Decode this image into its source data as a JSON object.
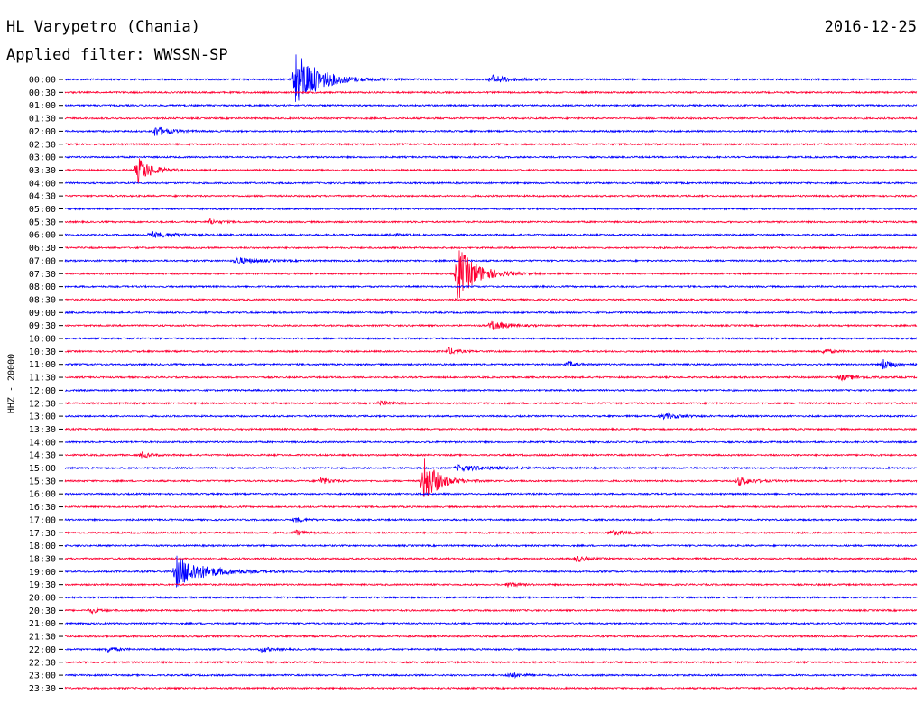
{
  "header": {
    "station": "HL Varypetro (Chania)",
    "date": "2016-12-25",
    "filter": "Applied filter: WWSSN-SP"
  },
  "axis": {
    "ylabel": "HHZ - 20000"
  },
  "chart_data": {
    "type": "line",
    "title": "HL Varypetro (Chania)",
    "xlabel": "",
    "ylabel": "HHZ - 20000",
    "grid": false,
    "legend": "none",
    "colors": {
      "even": "#0000ff",
      "odd": "#ff0033"
    },
    "series": [
      {
        "label": "00:00",
        "events": [
          {
            "x": 0.27,
            "amp": 33,
            "dur": 0.025
          },
          {
            "x": 0.5,
            "amp": 5,
            "dur": 0.02
          }
        ]
      },
      {
        "label": "00:30",
        "events": []
      },
      {
        "label": "01:00",
        "events": []
      },
      {
        "label": "01:30",
        "events": []
      },
      {
        "label": "02:00",
        "events": [
          {
            "x": 0.105,
            "amp": 6,
            "dur": 0.015
          }
        ]
      },
      {
        "label": "02:30",
        "events": []
      },
      {
        "label": "03:00",
        "events": []
      },
      {
        "label": "03:30",
        "events": [
          {
            "x": 0.085,
            "amp": 15,
            "dur": 0.015
          }
        ]
      },
      {
        "label": "04:00",
        "events": []
      },
      {
        "label": "04:30",
        "events": []
      },
      {
        "label": "05:00",
        "events": []
      },
      {
        "label": "05:30",
        "events": [
          {
            "x": 0.17,
            "amp": 3,
            "dur": 0.01
          }
        ]
      },
      {
        "label": "06:00",
        "events": [
          {
            "x": 0.1,
            "amp": 3,
            "dur": 0.03
          },
          {
            "x": 0.38,
            "amp": 2,
            "dur": 0.01
          }
        ]
      },
      {
        "label": "06:30",
        "events": []
      },
      {
        "label": "07:00",
        "events": [
          {
            "x": 0.2,
            "amp": 4,
            "dur": 0.02
          }
        ]
      },
      {
        "label": "07:30",
        "events": [
          {
            "x": 0.46,
            "amp": 32,
            "dur": 0.02
          }
        ]
      },
      {
        "label": "08:00",
        "events": []
      },
      {
        "label": "08:30",
        "events": []
      },
      {
        "label": "09:00",
        "events": []
      },
      {
        "label": "09:30",
        "events": [
          {
            "x": 0.5,
            "amp": 6,
            "dur": 0.015
          }
        ]
      },
      {
        "label": "10:00",
        "events": []
      },
      {
        "label": "10:30",
        "events": [
          {
            "x": 0.45,
            "amp": 4,
            "dur": 0.01
          },
          {
            "x": 0.89,
            "amp": 3,
            "dur": 0.01
          }
        ]
      },
      {
        "label": "11:00",
        "events": [
          {
            "x": 0.59,
            "amp": 3,
            "dur": 0.01
          },
          {
            "x": 0.96,
            "amp": 6,
            "dur": 0.015
          }
        ]
      },
      {
        "label": "11:30",
        "events": [
          {
            "x": 0.91,
            "amp": 3,
            "dur": 0.02
          }
        ]
      },
      {
        "label": "12:00",
        "events": []
      },
      {
        "label": "12:30",
        "events": [
          {
            "x": 0.37,
            "amp": 3,
            "dur": 0.01
          }
        ]
      },
      {
        "label": "13:00",
        "events": [
          {
            "x": 0.7,
            "amp": 3,
            "dur": 0.02
          }
        ]
      },
      {
        "label": "13:30",
        "events": []
      },
      {
        "label": "14:00",
        "events": []
      },
      {
        "label": "14:30",
        "events": [
          {
            "x": 0.09,
            "amp": 3,
            "dur": 0.01
          }
        ]
      },
      {
        "label": "15:00",
        "events": [
          {
            "x": 0.46,
            "amp": 3,
            "dur": 0.04
          }
        ]
      },
      {
        "label": "15:30",
        "events": [
          {
            "x": 0.3,
            "amp": 4,
            "dur": 0.01
          },
          {
            "x": 0.42,
            "amp": 30,
            "dur": 0.015
          },
          {
            "x": 0.79,
            "amp": 5,
            "dur": 0.015
          }
        ]
      },
      {
        "label": "16:00",
        "events": []
      },
      {
        "label": "16:30",
        "events": []
      },
      {
        "label": "17:00",
        "events": [
          {
            "x": 0.27,
            "amp": 3,
            "dur": 0.01
          }
        ]
      },
      {
        "label": "17:30",
        "events": [
          {
            "x": 0.27,
            "amp": 3,
            "dur": 0.01
          },
          {
            "x": 0.64,
            "amp": 3,
            "dur": 0.02
          }
        ]
      },
      {
        "label": "18:00",
        "events": []
      },
      {
        "label": "18:30",
        "events": [
          {
            "x": 0.6,
            "amp": 4,
            "dur": 0.01
          }
        ]
      },
      {
        "label": "19:00",
        "events": [
          {
            "x": 0.13,
            "amp": 18,
            "dur": 0.03
          }
        ]
      },
      {
        "label": "19:30",
        "events": [
          {
            "x": 0.52,
            "amp": 3,
            "dur": 0.01
          }
        ]
      },
      {
        "label": "20:00",
        "events": []
      },
      {
        "label": "20:30",
        "events": [
          {
            "x": 0.03,
            "amp": 3,
            "dur": 0.01
          }
        ]
      },
      {
        "label": "21:00",
        "events": []
      },
      {
        "label": "21:30",
        "events": []
      },
      {
        "label": "22:00",
        "events": [
          {
            "x": 0.05,
            "amp": 3,
            "dur": 0.01
          },
          {
            "x": 0.23,
            "amp": 3,
            "dur": 0.01
          }
        ]
      },
      {
        "label": "22:30",
        "events": []
      },
      {
        "label": "23:00",
        "events": [
          {
            "x": 0.52,
            "amp": 3,
            "dur": 0.015
          }
        ]
      },
      {
        "label": "23:30",
        "events": []
      }
    ]
  }
}
